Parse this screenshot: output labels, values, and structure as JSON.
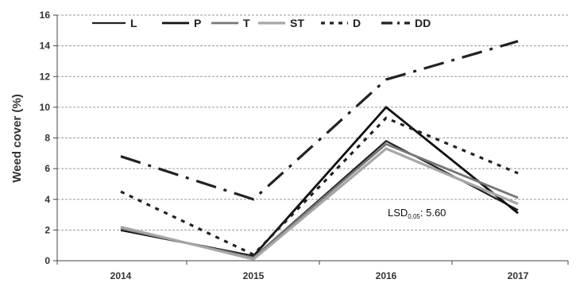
{
  "chart_data": {
    "type": "line",
    "categories": [
      "2014",
      "2015",
      "2016",
      "2017"
    ],
    "ylabel": "Weed cover (%)",
    "xlabel": "",
    "ylim": [
      0,
      16
    ],
    "yticks": [
      "0",
      "2",
      "4",
      "6",
      "8",
      "10",
      "12",
      "14",
      "16"
    ],
    "grid": "horizontal dashed",
    "legend_position": "top",
    "series": [
      {
        "name": "L",
        "values": [
          2.1,
          0.2,
          7.8,
          3.3
        ],
        "color": "#222222",
        "dash": "solid"
      },
      {
        "name": "P",
        "values": [
          2.0,
          0.3,
          10.0,
          3.1
        ],
        "color": "#111111",
        "dash": "solid"
      },
      {
        "name": "T",
        "values": [
          2.1,
          0.2,
          7.6,
          4.1
        ],
        "color": "#777777",
        "dash": "solid"
      },
      {
        "name": "ST",
        "values": [
          2.2,
          0.1,
          7.3,
          3.7
        ],
        "color": "#a6a6a6",
        "dash": "solid"
      },
      {
        "name": "D",
        "values": [
          4.5,
          0.4,
          9.3,
          5.7
        ],
        "color": "#222222",
        "dash": "dotted"
      },
      {
        "name": "DD",
        "values": [
          6.8,
          4.0,
          11.8,
          14.3
        ],
        "color": "#222222",
        "dash": "longdash"
      }
    ],
    "annotation": {
      "main": "LSD",
      "sub": "0.05",
      "suffix": ": 5.60"
    }
  }
}
